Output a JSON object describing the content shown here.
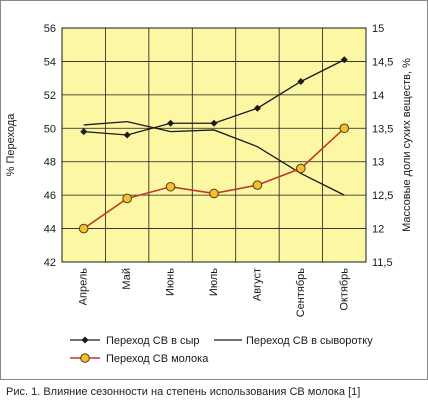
{
  "chart_data": {
    "type": "line",
    "categories": [
      "Апрель",
      "Май",
      "Июнь",
      "Июль",
      "Август",
      "Сентябрь",
      "Октябрь"
    ],
    "x": [
      "Апрель",
      "Май",
      "Июнь",
      "Июль",
      "Август",
      "Сентябрь",
      "Октябрь"
    ],
    "ylabel": "% Перехода",
    "ylabel_right": "Массовые доли сухих веществ, %",
    "ylim": [
      42,
      56
    ],
    "ylim_right": [
      11.5,
      15
    ],
    "yticks": [
      "42",
      "44",
      "46",
      "48",
      "50",
      "52",
      "54",
      "56"
    ],
    "yticks_right": [
      "11,5",
      "12",
      "12,5",
      "13",
      "13,5",
      "14",
      "14,5",
      "15"
    ],
    "grid": true,
    "legend_position": "bottom",
    "series": [
      {
        "name": "Переход СВ в сыр",
        "axis": "left",
        "values": [
          49.8,
          49.6,
          50.3,
          50.3,
          51.2,
          52.8,
          54.1
        ],
        "color": "#1a1a1a",
        "marker": "diamond"
      },
      {
        "name": "Переход СВ в сыворотку",
        "axis": "left",
        "values": [
          50.2,
          50.4,
          49.8,
          49.9,
          48.9,
          47.3,
          46.0
        ],
        "color": "#1a1a1a",
        "marker": "none"
      },
      {
        "name": "Переход СВ молока",
        "axis": "left",
        "values": [
          44.0,
          45.8,
          46.5,
          46.1,
          46.6,
          47.6,
          50.0
        ],
        "color": "#c0392b",
        "marker": "circle"
      }
    ]
  },
  "caption": "Рис. 1. Влияние сезонности на степень использования СВ молока [1]",
  "colors": {
    "plot_bg": "#fbf7a2",
    "grid": "#1a1a1a",
    "marker_fill": "#f2c12e",
    "red_line": "#c0392b"
  }
}
